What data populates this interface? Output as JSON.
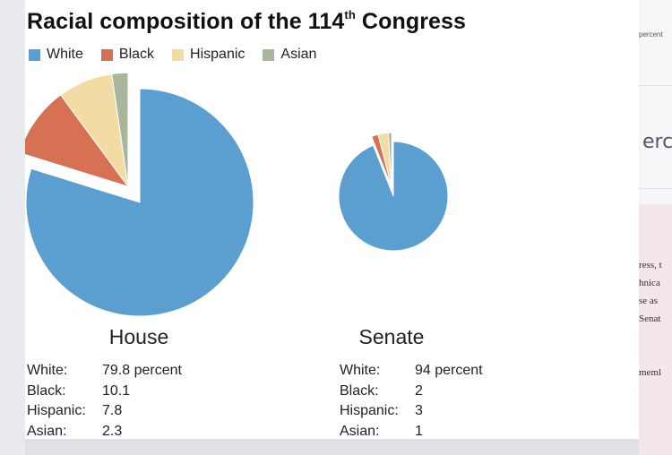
{
  "title": "Racial composition of the 114",
  "title_suffix": "th",
  "title_end": " Congress",
  "legend": [
    {
      "label": "White",
      "color": "#5b9fd0"
    },
    {
      "label": "Black",
      "color": "#d77154"
    },
    {
      "label": "Hispanic",
      "color": "#f3dca3"
    },
    {
      "label": "Asian",
      "color": "#a8b69c"
    }
  ],
  "chart_data": [
    {
      "type": "pie",
      "title": "House",
      "categories": [
        "White",
        "Black",
        "Hispanic",
        "Asian"
      ],
      "values": [
        79.8,
        10.1,
        7.8,
        2.3
      ],
      "exploded": [
        "Black",
        "Hispanic",
        "Asian"
      ]
    },
    {
      "type": "pie",
      "title": "Senate",
      "categories": [
        "White",
        "Black",
        "Hispanic",
        "Asian"
      ],
      "values": [
        94,
        2,
        3,
        1
      ],
      "exploded": [
        "Black",
        "Hispanic",
        "Asian"
      ]
    }
  ],
  "stats": {
    "house": [
      {
        "name": "White:",
        "value": "79.8 percent"
      },
      {
        "name": "Black:",
        "value": "10.1"
      },
      {
        "name": "Hispanic:",
        "value": "7.8"
      },
      {
        "name": "Asian:",
        "value": "2.3"
      }
    ],
    "senate": [
      {
        "name": "White:",
        "value": "94 percent"
      },
      {
        "name": "Black:",
        "value": "2"
      },
      {
        "name": "Hispanic:",
        "value": "3"
      },
      {
        "name": "Asian:",
        "value": "1"
      }
    ]
  },
  "sidebar_fragments": {
    "top": "percent",
    "big": "erce",
    "lines": [
      "ress, t",
      "hnica",
      "se as",
      "Senat"
    ],
    "bottom": "meml"
  }
}
